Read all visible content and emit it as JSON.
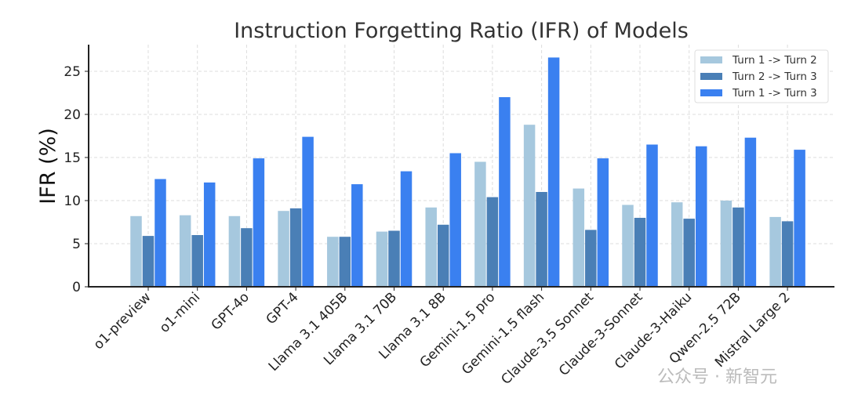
{
  "chart_data": {
    "type": "bar",
    "title": "Instruction Forgetting Ratio (IFR) of Models",
    "xlabel": "",
    "ylabel": "IFR (%)",
    "ylim": [
      0,
      28
    ],
    "yticks": [
      0,
      5,
      10,
      15,
      20,
      25
    ],
    "grid": true,
    "legend_position": "top-right",
    "categories": [
      "o1-preview",
      "o1-mini",
      "GPT-4o",
      "GPT-4",
      "Llama 3.1 405B",
      "Llama 3.1 70B",
      "Llama 3.1 8B",
      "Gemini-1.5 pro",
      "Gemini-1.5 flash",
      "Claude-3.5 Sonnet",
      "Claude-3-Sonnet",
      "Claude-3-Haiku",
      "Qwen-2.5 72B",
      "Mistral Large 2"
    ],
    "series": [
      {
        "name": "Turn 1 -> Turn 2",
        "color": "#a6c8de",
        "values": [
          8.2,
          8.3,
          8.2,
          8.8,
          5.8,
          6.4,
          9.2,
          14.5,
          18.8,
          11.4,
          9.5,
          9.8,
          10.0,
          8.1
        ]
      },
      {
        "name": "Turn 2 -> Turn 3",
        "color": "#4a7fb6",
        "values": [
          5.9,
          6.0,
          6.8,
          9.1,
          5.8,
          6.5,
          7.2,
          10.4,
          11.0,
          6.6,
          8.0,
          7.9,
          9.2,
          7.6
        ]
      },
      {
        "name": "Turn 1 -> Turn 3",
        "color": "#3a80f0",
        "values": [
          12.5,
          12.1,
          14.9,
          17.4,
          11.9,
          13.4,
          15.5,
          22.0,
          26.6,
          14.9,
          16.5,
          16.3,
          17.3,
          15.9
        ]
      }
    ]
  },
  "watermark": "公众号 · 新智元"
}
